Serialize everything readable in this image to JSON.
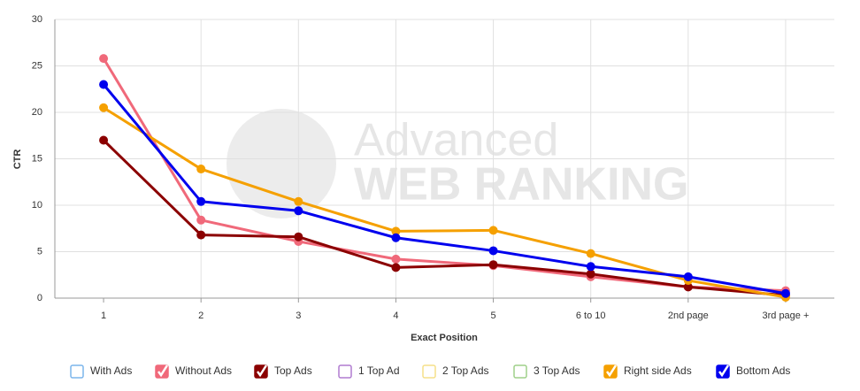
{
  "chart_data": {
    "type": "line",
    "watermark": [
      "Advanced",
      "WEB RANKING"
    ],
    "x_label": "Exact Position",
    "y_label": "CTR",
    "categories": [
      "1",
      "2",
      "3",
      "4",
      "5",
      "6 to 10",
      "2nd page",
      "3rd page +"
    ],
    "ylim": [
      0,
      30
    ],
    "yticks": [
      0,
      5,
      10,
      15,
      20,
      25,
      30
    ],
    "grid": true,
    "series": [
      {
        "name": "With Ads",
        "color": "#7cb5ec",
        "visible": false,
        "values": [
          null,
          null,
          null,
          null,
          null,
          null,
          null,
          null
        ]
      },
      {
        "name": "Without Ads",
        "color": "#f0697a",
        "visible": true,
        "values": [
          25.8,
          8.4,
          6.1,
          4.2,
          3.5,
          2.3,
          1.2,
          0.8
        ]
      },
      {
        "name": "Top Ads",
        "color": "#8b0000",
        "visible": true,
        "values": [
          17.0,
          6.8,
          6.6,
          3.3,
          3.6,
          2.6,
          1.2,
          0.3
        ]
      },
      {
        "name": "1 Top Ad",
        "color": "#b07cd0",
        "visible": false,
        "values": [
          null,
          null,
          null,
          null,
          null,
          null,
          null,
          null
        ]
      },
      {
        "name": "2 Top Ads",
        "color": "#f5e08a",
        "visible": false,
        "values": [
          null,
          null,
          null,
          null,
          null,
          null,
          null,
          null
        ]
      },
      {
        "name": "3 Top Ads",
        "color": "#9fd08a",
        "visible": false,
        "values": [
          null,
          null,
          null,
          null,
          null,
          null,
          null,
          null
        ]
      },
      {
        "name": "Right side Ads",
        "color": "#f5a000",
        "visible": true,
        "values": [
          20.5,
          13.9,
          10.4,
          7.2,
          7.3,
          4.8,
          1.9,
          0.1
        ]
      },
      {
        "name": "Bottom Ads",
        "color": "#0000ee",
        "visible": true,
        "values": [
          23.0,
          10.4,
          9.4,
          6.5,
          5.1,
          3.4,
          2.3,
          0.5
        ]
      }
    ]
  }
}
